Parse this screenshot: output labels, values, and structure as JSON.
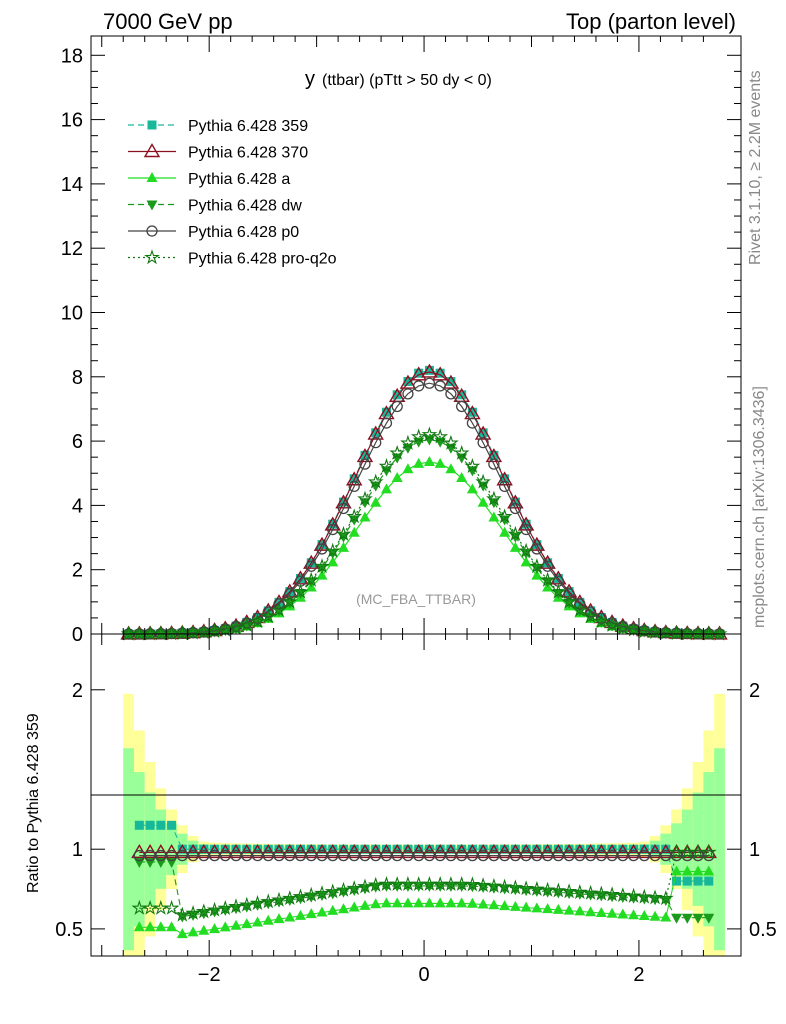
{
  "header": {
    "left": "7000 GeV pp",
    "right": "Top (parton level)"
  },
  "side": {
    "rivet": "Rivet 3.1.10, ≥ 2.2M events",
    "mcplots": "mcplots.cern.ch [arXiv:1306.3436]"
  },
  "plot_title": {
    "main": "y",
    "sub": "(ttbar) (pTtt > 50 dy < 0)"
  },
  "watermark": "(MC_FBA_TTBAR)",
  "ratio_label": "Ratio to Pythia 6.428 359",
  "chart_data": [
    {
      "type": "line",
      "panel": "main",
      "xlim": [
        -3.1,
        2.95
      ],
      "ylim": [
        0,
        18.6
      ],
      "y_ticks": [
        0,
        2,
        4,
        6,
        8,
        10,
        12,
        14,
        16,
        18
      ],
      "x_ticks": [
        -2,
        0,
        2
      ],
      "legend_position": "top-left",
      "series": [
        {
          "name": "Pythia 6.428 359",
          "color": "#17b89a",
          "marker": "square",
          "dash": "dashed",
          "peak": 8.2
        },
        {
          "name": "Pythia 6.428 370",
          "color": "#8b1020",
          "marker": "open-triangle",
          "dash": "solid",
          "peak": 8.15
        },
        {
          "name": "Pythia 6.428 a",
          "color": "#22dd22",
          "marker": "triangle",
          "dash": "solid",
          "peak": 5.35
        },
        {
          "name": "Pythia 6.428 dw",
          "color": "#1a9a1a",
          "marker": "triangle-down",
          "dash": "dashed",
          "peak": 6.05
        },
        {
          "name": "Pythia 6.428 p0",
          "color": "#444444",
          "marker": "open-circle",
          "dash": "solid",
          "peak": 7.8
        },
        {
          "name": "Pythia 6.428 pro-q2o",
          "color": "#117711",
          "marker": "star",
          "dash": "dotted",
          "peak": 6.2
        }
      ],
      "shape": {
        "center": 0.05,
        "sigma": 0.68,
        "x_from": -2.75,
        "x_to": 2.75,
        "n_points": 56
      }
    },
    {
      "type": "line",
      "panel": "ratio",
      "xlim": [
        -3.1,
        2.95
      ],
      "ylim": [
        0.33,
        2.35
      ],
      "y_ticks": [
        0.5,
        1,
        2
      ],
      "x_ticks": [
        -2,
        0,
        2
      ],
      "reference_line": 1,
      "series_levels": [
        {
          "name": "Pythia 6.428 359",
          "level": 1.0
        },
        {
          "name": "Pythia 6.428 370",
          "level": 0.98
        },
        {
          "name": "Pythia 6.428 a",
          "level": 0.66
        },
        {
          "name": "Pythia 6.428 dw",
          "level": 0.77
        },
        {
          "name": "Pythia 6.428 p0",
          "level": 0.96
        },
        {
          "name": "Pythia 6.428 pro-q2o",
          "level": 0.78
        }
      ],
      "band_colors": {
        "outer": "#ffff99",
        "inner": "#99ff99"
      }
    }
  ]
}
